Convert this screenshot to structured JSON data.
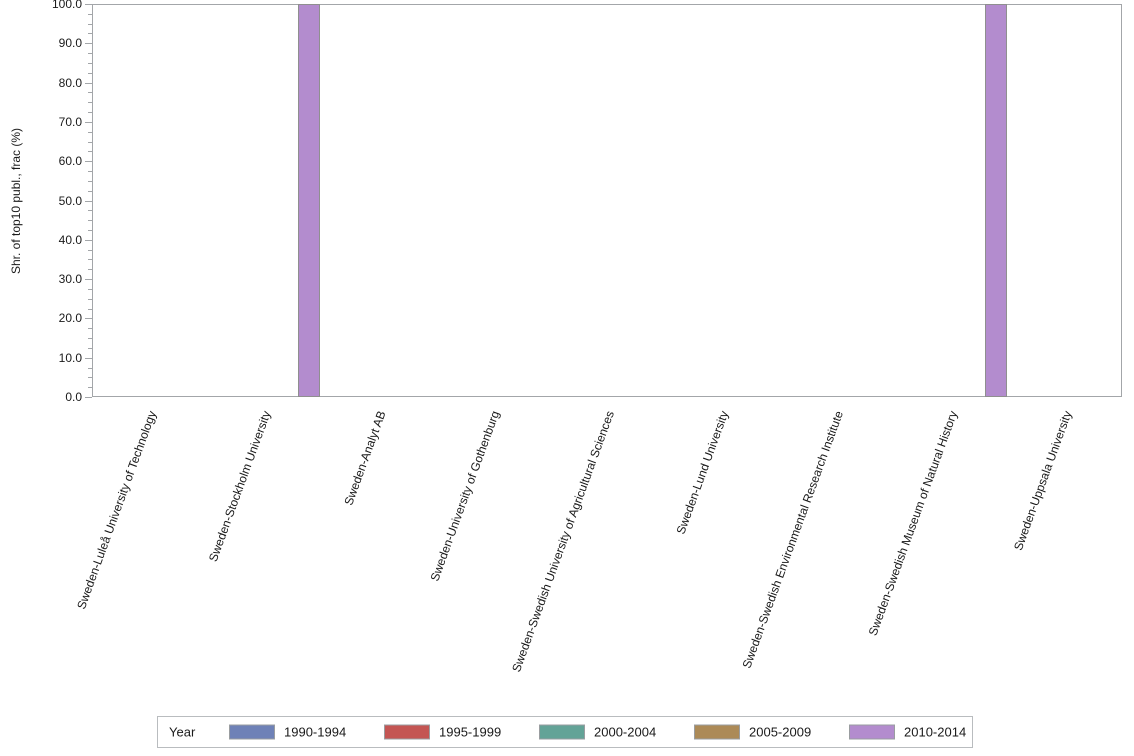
{
  "chart_data": {
    "type": "bar",
    "title": "",
    "xlabel": "",
    "ylabel": "Shr. of top10 publ., frac (%)",
    "ylim": [
      0,
      100
    ],
    "ytick_step": 10,
    "ytick_minor_step": 2.5,
    "ytick_label_decimals": 1,
    "grid": false,
    "legend_title": "Year",
    "legend_position": "bottom",
    "x_label_rotation_deg": 70,
    "categories": [
      "Sweden-Luleå University of Technology",
      "Sweden-Stockholm University",
      "Sweden-Analyt AB",
      "Sweden-University of Gothenburg",
      "Sweden-Swedish University of Agricultural Sciences",
      "Sweden-Lund University",
      "Sweden-Swedish Environmental Research Institute",
      "Sweden-Swedish Museum of Natural History",
      "Sweden-Uppsala University"
    ],
    "series": [
      {
        "name": "1990-1994",
        "color": "#6e81b7",
        "values": [
          0,
          0,
          0,
          0,
          0,
          0,
          0,
          0,
          0
        ]
      },
      {
        "name": "1995-1999",
        "color": "#c45553",
        "values": [
          0,
          0,
          0,
          0,
          0,
          0,
          0,
          0,
          0
        ]
      },
      {
        "name": "2000-2004",
        "color": "#63a397",
        "values": [
          0,
          0,
          0,
          0,
          0,
          0,
          0,
          0,
          0
        ]
      },
      {
        "name": "2005-2009",
        "color": "#ac8a57",
        "values": [
          0,
          0,
          0,
          0,
          0,
          0,
          0,
          0,
          0
        ]
      },
      {
        "name": "2010-2014",
        "color": "#b38cce",
        "values": [
          0,
          100,
          0,
          0,
          0,
          0,
          0,
          100,
          0
        ]
      }
    ],
    "colors": {
      "axis": "#a3a6a9",
      "bar_border": "#8f8f8f",
      "background": "#ffffff"
    }
  }
}
